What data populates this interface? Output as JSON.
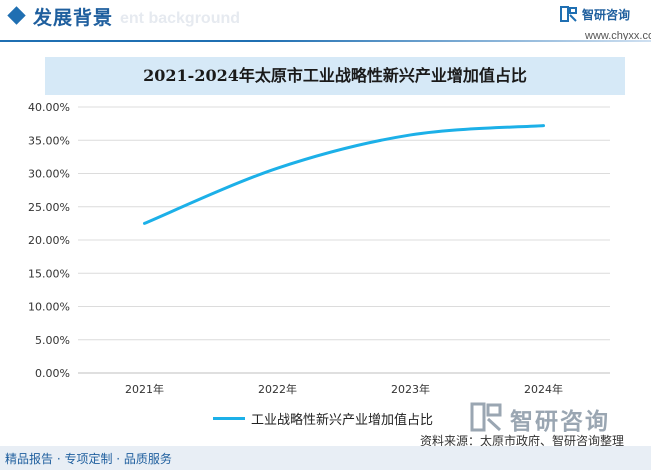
{
  "header": {
    "section_title": "发展背景",
    "section_subtitle": "ent background",
    "logo_name": "智研咨询",
    "logo_url": "www.chyxx.com"
  },
  "chart_data": {
    "type": "line",
    "title": "2021-2024年太原市工业战略性新兴产业增加值占比",
    "categories": [
      "2021年",
      "2022年",
      "2023年",
      "2024年"
    ],
    "series": [
      {
        "name": "工业战略性新兴产业增加值占比",
        "values": [
          22.5,
          30.8,
          35.8,
          37.2
        ],
        "color": "#1cb0e8"
      }
    ],
    "yticks": [
      "0.00%",
      "5.00%",
      "10.00%",
      "15.00%",
      "20.00%",
      "25.00%",
      "30.00%",
      "35.00%",
      "40.00%"
    ],
    "ylim": [
      0,
      40
    ],
    "ytick_step": 5,
    "grid": true,
    "legend_position": "bottom"
  },
  "watermark": {
    "text": "智研咨询"
  },
  "footer": {
    "source": "资料来源：太原市政府、智研咨询整理",
    "tagline": "精品报告 · 专项定制 · 品质服务"
  },
  "colors": {
    "accent": "#1f6fb2",
    "title_band": "#d6e9f7",
    "line": "#1cb0e8",
    "grid": "#d9d9d9"
  }
}
